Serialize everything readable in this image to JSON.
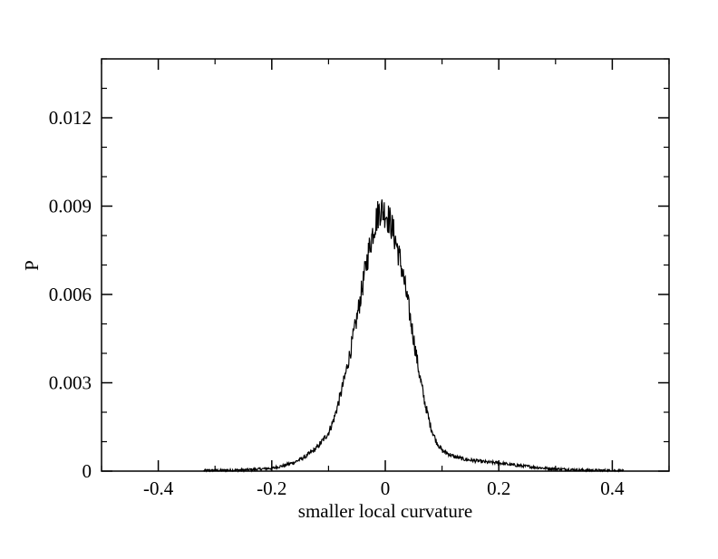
{
  "chart_data": {
    "type": "line",
    "title": "",
    "xlabel": "smaller local curvature",
    "ylabel": "P",
    "xlim": [
      -0.5,
      0.5
    ],
    "ylim": [
      0,
      0.014
    ],
    "grid": false,
    "x_ticks": [
      -0.4,
      -0.2,
      0,
      0.2,
      0.4
    ],
    "x_tick_labels": [
      "-0.4",
      "-0.2",
      "0",
      "0.2",
      "0.4"
    ],
    "y_ticks": [
      0,
      0.003,
      0.006,
      0.009,
      0.012
    ],
    "y_tick_labels": [
      "0",
      "0.003",
      "0.006",
      "0.009",
      "0.012"
    ],
    "series": [
      {
        "color": "#000000",
        "x": [
          -0.32,
          -0.28,
          -0.25,
          -0.22,
          -0.2,
          -0.18,
          -0.16,
          -0.14,
          -0.12,
          -0.1,
          -0.09,
          -0.08,
          -0.07,
          -0.06,
          -0.05,
          -0.04,
          -0.03,
          -0.02,
          -0.01,
          0.0,
          0.01,
          0.02,
          0.03,
          0.04,
          0.05,
          0.06,
          0.07,
          0.08,
          0.09,
          0.1,
          0.12,
          0.14,
          0.16,
          0.18,
          0.2,
          0.22,
          0.25,
          0.28,
          0.3,
          0.33,
          0.36,
          0.4,
          0.42
        ],
        "y": [
          2e-05,
          3e-05,
          4e-05,
          7e-05,
          0.0001,
          0.00018,
          0.0003,
          0.0005,
          0.0008,
          0.0013,
          0.0018,
          0.0025,
          0.0033,
          0.0042,
          0.0052,
          0.0063,
          0.0074,
          0.0083,
          0.0089,
          0.0088,
          0.0084,
          0.0077,
          0.0068,
          0.0057,
          0.0045,
          0.0033,
          0.0023,
          0.0015,
          0.001,
          0.0007,
          0.0005,
          0.0004,
          0.00035,
          0.0003,
          0.00028,
          0.00022,
          0.00016,
          0.0001,
          8e-05,
          5e-05,
          3e-05,
          2e-05,
          1e-05
        ]
      }
    ]
  }
}
